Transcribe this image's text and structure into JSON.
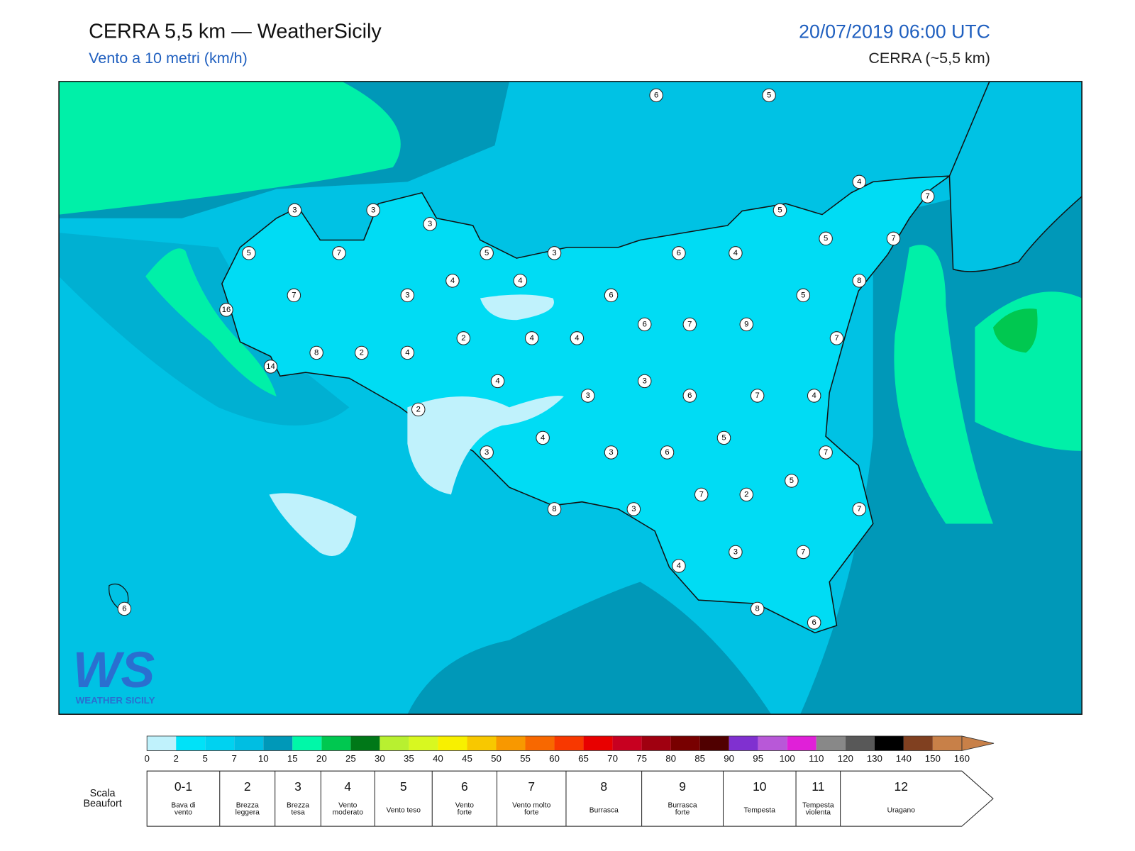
{
  "header": {
    "title": "CERRA 5,5 km — WeatherSicily",
    "subtitle": "Vento a 10 metri (km/h)",
    "date": "20/07/2019 06:00 UTC",
    "model": "CERRA (~5,5 km)"
  },
  "map": {
    "stations": [
      6,
      5,
      4,
      7,
      3,
      3,
      3,
      5,
      5,
      7,
      5,
      3,
      6,
      4,
      5,
      7,
      4,
      4,
      8,
      7,
      3,
      6,
      5,
      16,
      6,
      7,
      9,
      2,
      4,
      4,
      7,
      8,
      2,
      4,
      14,
      4,
      3,
      3,
      6,
      7,
      4,
      2,
      4,
      5,
      3,
      3,
      6,
      7,
      5,
      7,
      2,
      8,
      3,
      7,
      3,
      7,
      4,
      8,
      6,
      6
    ]
  },
  "logo": {
    "mark": "WS",
    "name": "WEATHER SICILY"
  },
  "colorbar": {
    "levels": [
      0,
      2,
      5,
      7,
      10,
      15,
      20,
      25,
      30,
      35,
      40,
      45,
      50,
      55,
      60,
      65,
      70,
      75,
      80,
      85,
      90,
      95,
      100,
      110,
      120,
      130,
      140,
      150,
      160
    ],
    "colors": [
      "#c0f2fc",
      "#00e2f8",
      "#00d2f0",
      "#00bee2",
      "#0098b8",
      "#00f8a8",
      "#00c850",
      "#007818",
      "#b8f030",
      "#d8f820",
      "#f8f000",
      "#f8c800",
      "#f89800",
      "#f86800",
      "#f83800",
      "#e80000",
      "#c80020",
      "#a00010",
      "#780000",
      "#500000",
      "#8030d0",
      "#b858d8",
      "#e020d8",
      "#888888",
      "#585858",
      "#000000",
      "#804020",
      "#c88048"
    ]
  },
  "beaufort": {
    "label": [
      "Scala",
      "Beaufort"
    ],
    "classes": [
      {
        "force": "0-1",
        "desc": [
          "Bava di",
          "vento"
        ]
      },
      {
        "force": 2,
        "desc": [
          "Brezza",
          "leggera"
        ]
      },
      {
        "force": 3,
        "desc": [
          "Brezza",
          "tesa"
        ]
      },
      {
        "force": 4,
        "desc": [
          "Vento",
          "moderato"
        ]
      },
      {
        "force": 5,
        "desc": [
          "Vento teso"
        ]
      },
      {
        "force": 6,
        "desc": [
          "Vento",
          "forte"
        ]
      },
      {
        "force": 7,
        "desc": [
          "Vento molto",
          "forte"
        ]
      },
      {
        "force": 8,
        "desc": [
          "Burrasca"
        ]
      },
      {
        "force": 9,
        "desc": [
          "Burrasca",
          "forte"
        ]
      },
      {
        "force": 10,
        "desc": [
          "Tempesta"
        ]
      },
      {
        "force": 11,
        "desc": [
          "Tempesta",
          "violenta"
        ]
      },
      {
        "force": 12,
        "desc": [
          "Uragano"
        ]
      }
    ]
  }
}
